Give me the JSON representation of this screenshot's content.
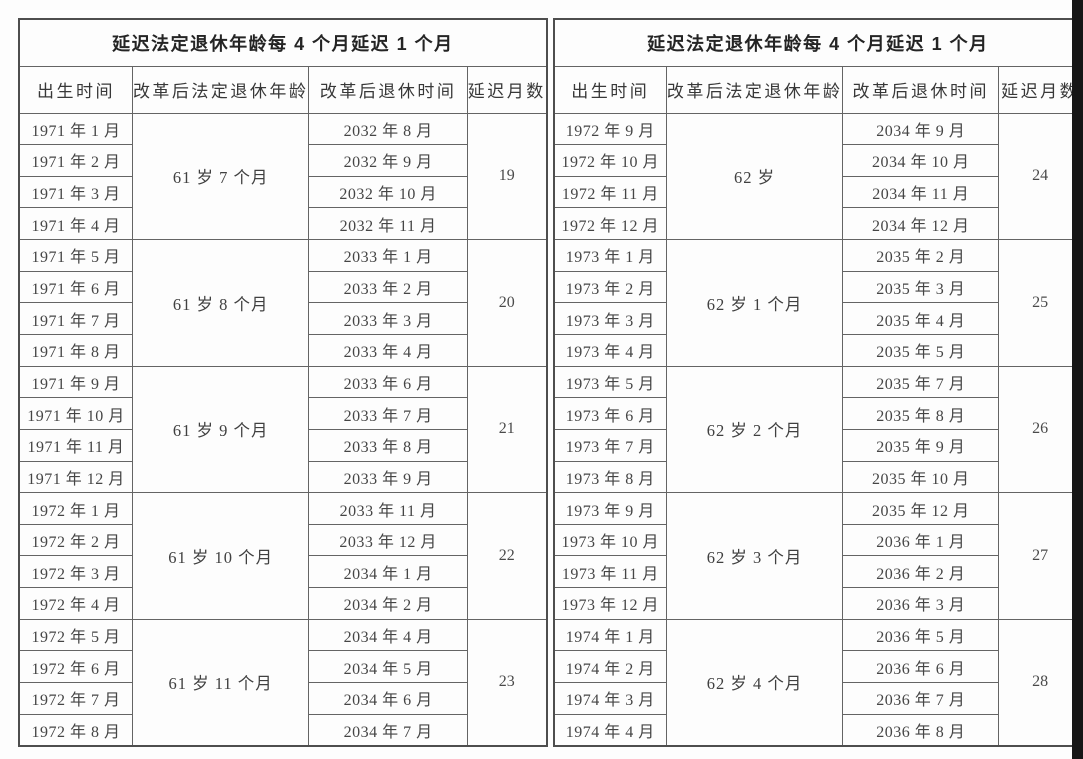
{
  "page": {
    "background_color": "#fdfdfd",
    "edge_strip_color": "#161616",
    "border_color": "#4e4e4e"
  },
  "tables": [
    {
      "title": "延迟法定退休年龄每 4 个月延迟 1 个月",
      "columns": [
        "出生时间",
        "改革后法定退休年龄",
        "改革后退休时间",
        "延迟月数"
      ],
      "groups": [
        {
          "age": "61 岁 7 个月",
          "delay": "19",
          "rows": [
            {
              "birth": "1971 年 1 月",
              "retire": "2032 年 8 月"
            },
            {
              "birth": "1971 年 2 月",
              "retire": "2032 年 9 月"
            },
            {
              "birth": "1971 年 3 月",
              "retire": "2032 年 10 月"
            },
            {
              "birth": "1971 年 4 月",
              "retire": "2032 年 11 月"
            }
          ]
        },
        {
          "age": "61 岁 8 个月",
          "delay": "20",
          "rows": [
            {
              "birth": "1971 年 5 月",
              "retire": "2033 年 1 月"
            },
            {
              "birth": "1971 年 6 月",
              "retire": "2033 年 2 月"
            },
            {
              "birth": "1971 年 7 月",
              "retire": "2033 年 3 月"
            },
            {
              "birth": "1971 年 8 月",
              "retire": "2033 年 4 月"
            }
          ]
        },
        {
          "age": "61 岁 9 个月",
          "delay": "21",
          "rows": [
            {
              "birth": "1971 年 9 月",
              "retire": "2033 年 6 月"
            },
            {
              "birth": "1971 年 10 月",
              "retire": "2033 年 7 月"
            },
            {
              "birth": "1971 年 11 月",
              "retire": "2033 年 8 月"
            },
            {
              "birth": "1971 年 12 月",
              "retire": "2033 年 9 月"
            }
          ]
        },
        {
          "age": "61 岁 10 个月",
          "delay": "22",
          "rows": [
            {
              "birth": "1972 年 1 月",
              "retire": "2033 年 11 月"
            },
            {
              "birth": "1972 年 2 月",
              "retire": "2033 年 12 月"
            },
            {
              "birth": "1972 年 3 月",
              "retire": "2034 年 1 月"
            },
            {
              "birth": "1972 年 4 月",
              "retire": "2034 年 2 月"
            }
          ]
        },
        {
          "age": "61 岁 11 个月",
          "delay": "23",
          "rows": [
            {
              "birth": "1972 年 5 月",
              "retire": "2034 年 4 月"
            },
            {
              "birth": "1972 年 6 月",
              "retire": "2034 年 5 月"
            },
            {
              "birth": "1972 年 7 月",
              "retire": "2034 年 6 月"
            },
            {
              "birth": "1972 年 8 月",
              "retire": "2034 年 7 月"
            }
          ]
        }
      ]
    },
    {
      "title": "延迟法定退休年龄每 4 个月延迟 1 个月",
      "columns": [
        "出生时间",
        "改革后法定退休年龄",
        "改革后退休时间",
        "延迟月数"
      ],
      "groups": [
        {
          "age": "62 岁",
          "delay": "24",
          "rows": [
            {
              "birth": "1972 年 9 月",
              "retire": "2034 年 9 月"
            },
            {
              "birth": "1972 年 10 月",
              "retire": "2034 年 10 月"
            },
            {
              "birth": "1972 年 11 月",
              "retire": "2034 年 11 月"
            },
            {
              "birth": "1972 年 12 月",
              "retire": "2034 年 12 月"
            }
          ]
        },
        {
          "age": "62 岁 1 个月",
          "delay": "25",
          "rows": [
            {
              "birth": "1973 年 1 月",
              "retire": "2035 年 2 月"
            },
            {
              "birth": "1973 年 2 月",
              "retire": "2035 年 3 月"
            },
            {
              "birth": "1973 年 3 月",
              "retire": "2035 年 4 月"
            },
            {
              "birth": "1973 年 4 月",
              "retire": "2035 年 5 月"
            }
          ]
        },
        {
          "age": "62 岁 2 个月",
          "delay": "26",
          "rows": [
            {
              "birth": "1973 年 5 月",
              "retire": "2035 年 7 月"
            },
            {
              "birth": "1973 年 6 月",
              "retire": "2035 年 8 月"
            },
            {
              "birth": "1973 年 7 月",
              "retire": "2035 年 9 月"
            },
            {
              "birth": "1973 年 8 月",
              "retire": "2035 年 10 月"
            }
          ]
        },
        {
          "age": "62 岁 3 个月",
          "delay": "27",
          "rows": [
            {
              "birth": "1973 年 9 月",
              "retire": "2035 年 12 月"
            },
            {
              "birth": "1973 年 10 月",
              "retire": "2036 年 1 月"
            },
            {
              "birth": "1973 年 11 月",
              "retire": "2036 年 2 月"
            },
            {
              "birth": "1973 年 12 月",
              "retire": "2036 年 3 月"
            }
          ]
        },
        {
          "age": "62 岁 4 个月",
          "delay": "28",
          "rows": [
            {
              "birth": "1974 年 1 月",
              "retire": "2036 年 5 月"
            },
            {
              "birth": "1974 年 2 月",
              "retire": "2036 年 6 月"
            },
            {
              "birth": "1974 年 3 月",
              "retire": "2036 年 7 月"
            },
            {
              "birth": "1974 年 4 月",
              "retire": "2036 年 8 月"
            }
          ]
        }
      ]
    }
  ]
}
